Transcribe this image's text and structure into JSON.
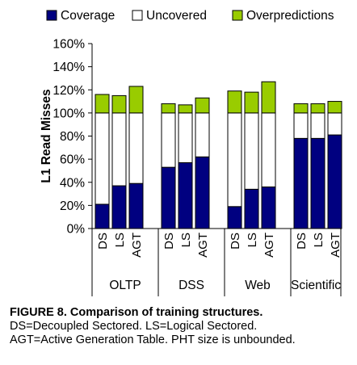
{
  "chart_data": {
    "type": "bar",
    "stacked": true,
    "ylabel": "L1 Read Misses",
    "xlabel": "",
    "ylim": [
      0,
      160
    ],
    "yticks": [
      0,
      20,
      40,
      60,
      80,
      100,
      120,
      140,
      160
    ],
    "ytick_suffix": "%",
    "grid": false,
    "legend_position": "top",
    "groups": [
      {
        "name": "OLTP",
        "categories": [
          "DS",
          "LS",
          "AGT"
        ]
      },
      {
        "name": "DSS",
        "categories": [
          "DS",
          "LS",
          "AGT"
        ]
      },
      {
        "name": "Web",
        "categories": [
          "DS",
          "LS",
          "AGT"
        ]
      },
      {
        "name": "Scientific",
        "categories": [
          "DS",
          "LS",
          "AGT"
        ]
      }
    ],
    "series": [
      {
        "name": "Coverage",
        "color": "#000080",
        "values": [
          21,
          37,
          39,
          53,
          57,
          62,
          19,
          34,
          36,
          78,
          78,
          81
        ]
      },
      {
        "name": "Uncovered",
        "color": "#ffffff",
        "values": [
          79,
          63,
          61,
          47,
          43,
          38,
          81,
          66,
          64,
          22,
          22,
          19
        ]
      },
      {
        "name": "Overpredictions",
        "color": "#99cc00",
        "values": [
          16,
          15,
          23,
          8,
          7,
          13,
          19,
          18,
          27,
          8,
          8,
          10
        ]
      }
    ]
  },
  "caption": {
    "title": "FIGURE 8. Comparison of training structures.",
    "line2": "DS=Decoupled Sectored. LS=Logical Sectored.",
    "line3": "AGT=Active Generation Table. PHT size is unbounded."
  }
}
